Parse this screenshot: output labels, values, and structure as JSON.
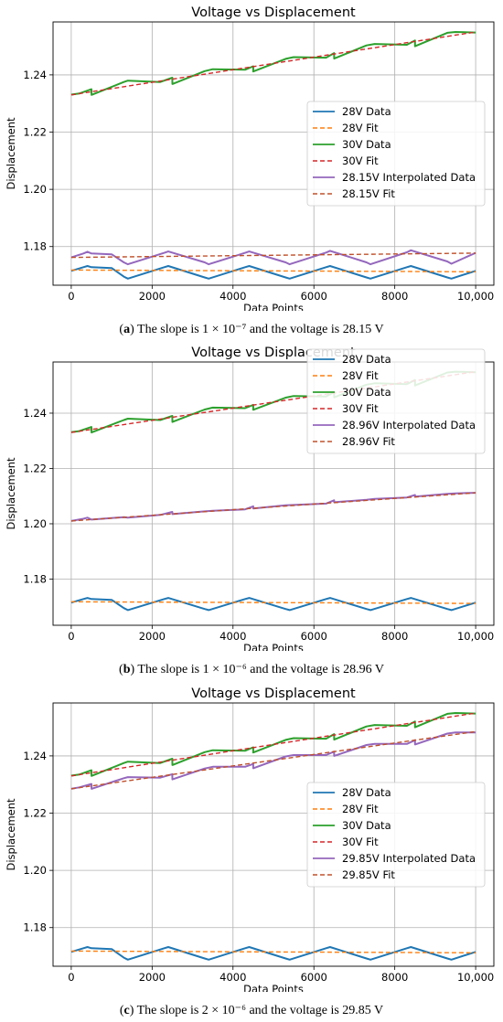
{
  "colors": {
    "data28": "#1f77b4",
    "fit28": "#ff7f0e",
    "data30": "#2ca02c",
    "fit30": "#d62728",
    "interp": "#9467bd",
    "fitInterp": "#c0502b",
    "grid": "#b0b0b0"
  },
  "panels": [
    {
      "caption": {
        "label": "a",
        "text": "The slope is 1 × 10⁻⁷ and the voltage is 28.15 V"
      },
      "chart_data": {
        "type": "line",
        "title": "Voltage vs Displacement",
        "xlabel": "Data Points",
        "ylabel": "Displacement",
        "xlim": [
          -450,
          10450
        ],
        "ylim": [
          1.1665,
          1.2585
        ],
        "xticks": [
          0,
          2000,
          4000,
          6000,
          8000,
          10000
        ],
        "xtick_labels": [
          "0",
          "2000",
          "4000",
          "6000",
          "8000",
          "10,000"
        ],
        "yticks": [
          1.18,
          1.2,
          1.22,
          1.24
        ],
        "ytick_labels": [
          "1.18",
          "1.20",
          "1.22",
          "1.24"
        ],
        "grid": true,
        "legend": "center-right",
        "series": [
          {
            "name": "28V Data",
            "color_key": "data28",
            "dash": false,
            "width": 2,
            "x": [
              0,
              300,
              400,
              500,
              1000,
              1300,
              1400,
              2300,
              2400,
              3300,
              3400,
              4300,
              4400,
              5300,
              5400,
              6300,
              6400,
              7300,
              7400,
              8300,
              8400,
              9300,
              9400,
              10000
            ],
            "y": [
              1.1715,
              1.1728,
              1.1732,
              1.1728,
              1.1725,
              1.1695,
              1.1688,
              1.1728,
              1.1732,
              1.1692,
              1.1688,
              1.1728,
              1.1732,
              1.1692,
              1.1688,
              1.1728,
              1.1732,
              1.1692,
              1.1688,
              1.1728,
              1.1732,
              1.1692,
              1.1688,
              1.1715
            ]
          },
          {
            "name": "28V Fit",
            "color_key": "fit28",
            "dash": true,
            "width": 1.4,
            "x": [
              0,
              10000
            ],
            "y": [
              1.1718,
              1.1712
            ]
          },
          {
            "name": "30V Data",
            "color_key": "data30",
            "dash": false,
            "width": 2,
            "x": [
              0,
              200,
              500,
              501,
              1300,
              1400,
              2200,
              2500,
              2501,
              3300,
              3500,
              4300,
              4500,
              4501,
              5300,
              5500,
              6300,
              6500,
              6501,
              7300,
              7500,
              8300,
              8500,
              8501,
              9300,
              9500,
              10000
            ],
            "y": [
              1.2331,
              1.2335,
              1.235,
              1.233,
              1.2375,
              1.238,
              1.2375,
              1.239,
              1.2368,
              1.2413,
              1.242,
              1.2418,
              1.243,
              1.2412,
              1.2456,
              1.2462,
              1.246,
              1.2476,
              1.2457,
              1.2503,
              1.2508,
              1.2505,
              1.252,
              1.25,
              1.2547,
              1.255,
              1.2548
            ]
          },
          {
            "name": "30V Fit",
            "color_key": "fit30",
            "dash": true,
            "width": 1.4,
            "x": [
              0,
              10000
            ],
            "y": [
              1.233,
              1.255
            ]
          },
          {
            "name": "28.15V Interpolated Data",
            "color_key": "interp",
            "dash": false,
            "width": 2,
            "x": [
              0,
              300,
              400,
              500,
              1000,
              1300,
              1400,
              2300,
              2400,
              3300,
              3400,
              4300,
              4400,
              5300,
              5400,
              6300,
              6400,
              7300,
              7400,
              8300,
              8400,
              9300,
              9400,
              10000
            ],
            "y": [
              1.1762,
              1.1776,
              1.1782,
              1.1776,
              1.1773,
              1.1745,
              1.1738,
              1.1778,
              1.1783,
              1.1745,
              1.1738,
              1.1778,
              1.1783,
              1.1745,
              1.1738,
              1.1779,
              1.1785,
              1.1745,
              1.1738,
              1.178,
              1.1787,
              1.1748,
              1.174,
              1.1778
            ]
          },
          {
            "name": "28.15V Fit",
            "color_key": "fitInterp",
            "dash": true,
            "width": 1.4,
            "x": [
              0,
              10000
            ],
            "y": [
              1.1762,
              1.1777
            ]
          }
        ]
      }
    },
    {
      "caption": {
        "label": "b",
        "text": "The slope is 1 × 10⁻⁶ and the voltage is 28.96 V"
      },
      "chart_data": {
        "type": "line",
        "title": "Voltage vs Displacement",
        "xlabel": "Data Points",
        "ylabel": "Displacement",
        "xlim": [
          -450,
          10450
        ],
        "ylim": [
          1.1633,
          1.2585
        ],
        "xticks": [
          0,
          2000,
          4000,
          6000,
          8000,
          10000
        ],
        "xtick_labels": [
          "0",
          "2000",
          "4000",
          "6000",
          "8000",
          "10,000"
        ],
        "yticks": [
          1.18,
          1.2,
          1.22,
          1.24
        ],
        "ytick_labels": [
          "1.18",
          "1.20",
          "1.22",
          "1.24"
        ],
        "grid": true,
        "legend": "top-right",
        "series": [
          {
            "name": "28V Data",
            "color_key": "data28",
            "dash": false,
            "width": 2,
            "x": [
              0,
              300,
              400,
              500,
              1000,
              1300,
              1400,
              2300,
              2400,
              3300,
              3400,
              4300,
              4400,
              5300,
              5400,
              6300,
              6400,
              7300,
              7400,
              8300,
              8400,
              9300,
              9400,
              10000
            ],
            "y": [
              1.1715,
              1.1728,
              1.1732,
              1.1728,
              1.1725,
              1.1695,
              1.1688,
              1.1728,
              1.1732,
              1.1692,
              1.1688,
              1.1728,
              1.1732,
              1.1692,
              1.1688,
              1.1728,
              1.1732,
              1.1692,
              1.1688,
              1.1728,
              1.1732,
              1.1692,
              1.1688,
              1.1715
            ]
          },
          {
            "name": "28V Fit",
            "color_key": "fit28",
            "dash": true,
            "width": 1.4,
            "x": [
              0,
              10000
            ],
            "y": [
              1.1718,
              1.1712
            ]
          },
          {
            "name": "30V Data",
            "color_key": "data30",
            "dash": false,
            "width": 2,
            "x": [
              0,
              200,
              500,
              501,
              1300,
              1400,
              2200,
              2500,
              2501,
              3300,
              3500,
              4300,
              4500,
              4501,
              5300,
              5500,
              6300,
              6500,
              6501,
              7300,
              7500,
              8300,
              8500,
              8501,
              9300,
              9500,
              10000
            ],
            "y": [
              1.2331,
              1.2335,
              1.235,
              1.233,
              1.2375,
              1.238,
              1.2375,
              1.239,
              1.2368,
              1.2413,
              1.242,
              1.2418,
              1.243,
              1.2412,
              1.2456,
              1.2462,
              1.246,
              1.2476,
              1.2457,
              1.2503,
              1.2508,
              1.2505,
              1.252,
              1.25,
              1.2547,
              1.255,
              1.2548
            ]
          },
          {
            "name": "30V Fit",
            "color_key": "fit30",
            "dash": true,
            "width": 1.4,
            "x": [
              0,
              10000
            ],
            "y": [
              1.233,
              1.255
            ]
          },
          {
            "name": "28.96V Interpolated Data",
            "color_key": "interp",
            "dash": false,
            "width": 2,
            "x": [
              0,
              300,
              400,
              500,
              1300,
              1400,
              2200,
              2500,
              2501,
              3300,
              3500,
              4300,
              4500,
              4501,
              5300,
              5500,
              6300,
              6500,
              6501,
              7300,
              7500,
              8300,
              8500,
              8501,
              9300,
              9500,
              10000
            ],
            "y": [
              1.201,
              1.2018,
              1.2022,
              1.2015,
              1.2024,
              1.2022,
              1.2032,
              1.2043,
              1.2035,
              1.2045,
              1.2047,
              1.2052,
              1.2063,
              1.2055,
              1.2067,
              1.2068,
              1.2073,
              1.2085,
              1.2078,
              1.2087,
              1.209,
              1.2095,
              1.2104,
              1.2098,
              1.2108,
              1.211,
              1.2112
            ]
          },
          {
            "name": "28.96V Fit",
            "color_key": "fitInterp",
            "dash": true,
            "width": 1.4,
            "x": [
              0,
              10000
            ],
            "y": [
              1.201,
              1.2112
            ]
          }
        ]
      }
    },
    {
      "caption": {
        "label": "c",
        "text": "The slope is 2 × 10⁻⁶ and the voltage is 29.85 V"
      },
      "chart_data": {
        "type": "line",
        "title": "Voltage vs Displacement",
        "xlabel": "Data Points",
        "ylabel": "Displacement",
        "xlim": [
          -450,
          10450
        ],
        "ylim": [
          1.1665,
          1.2585
        ],
        "xticks": [
          0,
          2000,
          4000,
          6000,
          8000,
          10000
        ],
        "xtick_labels": [
          "0",
          "2000",
          "4000",
          "6000",
          "8000",
          "10,000"
        ],
        "yticks": [
          1.18,
          1.2,
          1.22,
          1.24
        ],
        "ytick_labels": [
          "1.18",
          "1.20",
          "1.22",
          "1.24"
        ],
        "grid": true,
        "legend": "center-right",
        "series": [
          {
            "name": "28V Data",
            "color_key": "data28",
            "dash": false,
            "width": 2,
            "x": [
              0,
              300,
              400,
              500,
              1000,
              1300,
              1400,
              2300,
              2400,
              3300,
              3400,
              4300,
              4400,
              5300,
              5400,
              6300,
              6400,
              7300,
              7400,
              8300,
              8400,
              9300,
              9400,
              10000
            ],
            "y": [
              1.1715,
              1.1728,
              1.1732,
              1.1728,
              1.1725,
              1.1695,
              1.1688,
              1.1728,
              1.1732,
              1.1692,
              1.1688,
              1.1728,
              1.1732,
              1.1692,
              1.1688,
              1.1728,
              1.1732,
              1.1692,
              1.1688,
              1.1728,
              1.1732,
              1.1692,
              1.1688,
              1.1715
            ]
          },
          {
            "name": "28V Fit",
            "color_key": "fit28",
            "dash": true,
            "width": 1.4,
            "x": [
              0,
              10000
            ],
            "y": [
              1.1718,
              1.1712
            ]
          },
          {
            "name": "30V Data",
            "color_key": "data30",
            "dash": false,
            "width": 2,
            "x": [
              0,
              200,
              500,
              501,
              1300,
              1400,
              2200,
              2500,
              2501,
              3300,
              3500,
              4300,
              4500,
              4501,
              5300,
              5500,
              6300,
              6500,
              6501,
              7300,
              7500,
              8300,
              8500,
              8501,
              9300,
              9500,
              10000
            ],
            "y": [
              1.2331,
              1.2335,
              1.235,
              1.233,
              1.2375,
              1.238,
              1.2375,
              1.239,
              1.2368,
              1.2413,
              1.242,
              1.2418,
              1.243,
              1.2412,
              1.2456,
              1.2462,
              1.246,
              1.2476,
              1.2457,
              1.2503,
              1.2508,
              1.2505,
              1.252,
              1.25,
              1.2547,
              1.255,
              1.2548
            ]
          },
          {
            "name": "30V Fit",
            "color_key": "fit30",
            "dash": true,
            "width": 1.4,
            "x": [
              0,
              10000
            ],
            "y": [
              1.233,
              1.255
            ]
          },
          {
            "name": "29.85V Interpolated Data",
            "color_key": "interp",
            "dash": false,
            "width": 2,
            "x": [
              0,
              200,
              500,
              501,
              1300,
              1400,
              2200,
              2500,
              2501,
              3300,
              3500,
              4300,
              4500,
              4501,
              5300,
              5500,
              6300,
              6500,
              6501,
              7300,
              7500,
              8300,
              8500,
              8501,
              9300,
              9500,
              10000
            ],
            "y": [
              1.2285,
              1.229,
              1.2302,
              1.2285,
              1.2322,
              1.2326,
              1.2324,
              1.2336,
              1.2318,
              1.2356,
              1.2362,
              1.2362,
              1.2372,
              1.2357,
              1.2398,
              1.2403,
              1.2403,
              1.2415,
              1.24,
              1.2438,
              1.2442,
              1.2442,
              1.2455,
              1.244,
              1.2478,
              1.2482,
              1.2482
            ]
          },
          {
            "name": "29.85V Fit",
            "color_key": "fitInterp",
            "dash": true,
            "width": 1.4,
            "x": [
              0,
              10000
            ],
            "y": [
              1.2285,
              1.2485
            ]
          }
        ]
      }
    }
  ]
}
